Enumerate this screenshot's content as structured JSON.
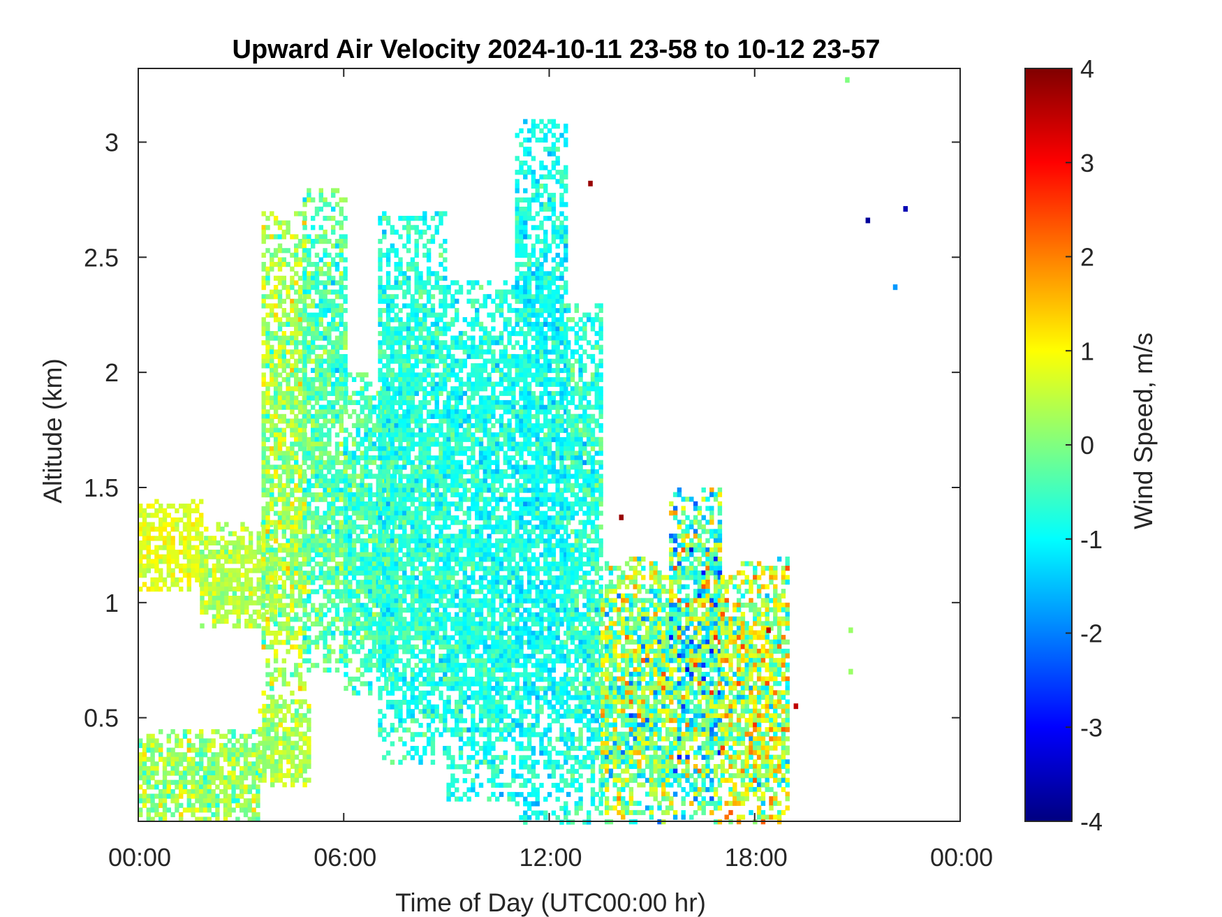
{
  "chart_data": {
    "type": "heatmap",
    "title": "Upward Air Velocity 2024-10-11 23-58 to 10-12 23-57",
    "xlabel": "Time of Day (UTC00:00 hr)",
    "ylabel": "Altitude (km)",
    "xlim": [
      0,
      24
    ],
    "ylim": [
      0.05,
      3.32
    ],
    "x_ticks": [
      {
        "value": 0,
        "label": "00:00"
      },
      {
        "value": 6,
        "label": "06:00"
      },
      {
        "value": 12,
        "label": "12:00"
      },
      {
        "value": 18,
        "label": "18:00"
      },
      {
        "value": 24,
        "label": "00:00"
      }
    ],
    "y_ticks": [
      {
        "value": 0.5,
        "label": "0.5"
      },
      {
        "value": 1,
        "label": "1"
      },
      {
        "value": 1.5,
        "label": "1.5"
      },
      {
        "value": 2,
        "label": "2"
      },
      {
        "value": 2.5,
        "label": "2.5"
      },
      {
        "value": 3,
        "label": "3"
      }
    ],
    "colorbar": {
      "label": "Wind Speed, m/s",
      "range": [
        -4,
        4
      ],
      "colormap": "jet",
      "ticks": [
        {
          "value": 4,
          "label": "4"
        },
        {
          "value": 3,
          "label": "3"
        },
        {
          "value": 2,
          "label": "2"
        },
        {
          "value": 1,
          "label": "1"
        },
        {
          "value": 0,
          "label": "0"
        },
        {
          "value": -1,
          "label": "-1"
        },
        {
          "value": -2,
          "label": "-2"
        },
        {
          "value": -3,
          "label": "-3"
        },
        {
          "value": -4,
          "label": "-4"
        }
      ]
    },
    "grid": false,
    "regions": [
      {
        "t": [
          0.0,
          1.8
        ],
        "alt": [
          1.05,
          1.45
        ],
        "w": 0.8,
        "spread": 0.4
      },
      {
        "t": [
          1.8,
          4.0
        ],
        "alt": [
          0.9,
          1.35
        ],
        "w": 0.4,
        "spread": 0.5
      },
      {
        "t": [
          3.6,
          4.8
        ],
        "alt": [
          0.6,
          2.7
        ],
        "w": 0.3,
        "spread": 0.9
      },
      {
        "t": [
          4.8,
          6.0
        ],
        "alt": [
          0.7,
          2.8
        ],
        "w": -0.3,
        "spread": 0.8
      },
      {
        "t": [
          6.0,
          7.5
        ],
        "alt": [
          0.6,
          2.0
        ],
        "w": -0.5,
        "spread": 0.7
      },
      {
        "t": [
          7.0,
          9.0
        ],
        "alt": [
          0.3,
          2.7
        ],
        "w": -0.7,
        "spread": 0.6
      },
      {
        "t": [
          9.0,
          11.0
        ],
        "alt": [
          0.15,
          2.4
        ],
        "w": -0.8,
        "spread": 0.6
      },
      {
        "t": [
          11.0,
          12.5
        ],
        "alt": [
          0.05,
          3.1
        ],
        "w": -0.9,
        "spread": 0.6
      },
      {
        "t": [
          12.5,
          13.5
        ],
        "alt": [
          0.05,
          2.3
        ],
        "w": -0.7,
        "spread": 0.7
      },
      {
        "t": [
          13.5,
          15.5
        ],
        "alt": [
          0.05,
          1.2
        ],
        "w": 0.0,
        "spread": 1.6
      },
      {
        "t": [
          15.5,
          17.0
        ],
        "alt": [
          0.05,
          1.5
        ],
        "w": -0.3,
        "spread": 1.9
      },
      {
        "t": [
          17.0,
          19.0
        ],
        "alt": [
          0.05,
          1.2
        ],
        "w": 0.4,
        "spread": 1.6
      },
      {
        "t": [
          0.0,
          3.5
        ],
        "alt": [
          0.05,
          0.45
        ],
        "w": 0.2,
        "spread": 0.8
      },
      {
        "t": [
          3.5,
          5.0
        ],
        "alt": [
          0.2,
          0.6
        ],
        "w": 0.3,
        "spread": 0.6
      }
    ],
    "isolated_points": [
      {
        "t": 13.2,
        "alt": 2.82,
        "w": 3.8
      },
      {
        "t": 14.1,
        "alt": 1.37,
        "w": 3.8
      },
      {
        "t": 21.3,
        "alt": 2.66,
        "w": -3.8
      },
      {
        "t": 22.4,
        "alt": 2.71,
        "w": -3.6
      },
      {
        "t": 22.1,
        "alt": 2.37,
        "w": -1.8
      },
      {
        "t": 20.7,
        "alt": 3.27,
        "w": 0.0
      },
      {
        "t": 20.8,
        "alt": 0.88,
        "w": 0.2
      },
      {
        "t": 20.8,
        "alt": 0.7,
        "w": 0.2
      },
      {
        "t": 18.4,
        "alt": 0.88,
        "w": 3.5
      },
      {
        "t": 19.2,
        "alt": 0.55,
        "w": 3.5
      }
    ]
  }
}
